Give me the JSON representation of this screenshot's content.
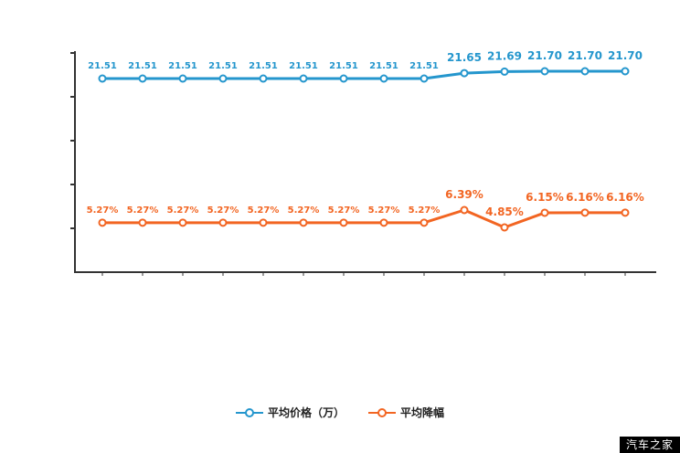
{
  "chart_data": {
    "type": "line",
    "point_count": 14,
    "x_tick_labels_visible": false,
    "grid": false,
    "legend_position": "bottom",
    "axis_color": "#333333",
    "series": [
      {
        "name": "平均价格（万）",
        "color": "#2496cd",
        "values": [
          21.51,
          21.51,
          21.51,
          21.51,
          21.51,
          21.51,
          21.51,
          21.51,
          21.51,
          21.65,
          21.69,
          21.7,
          21.7,
          21.7
        ],
        "labels": [
          "21.51",
          "21.51",
          "21.51",
          "21.51",
          "21.51",
          "21.51",
          "21.51",
          "21.51",
          "21.51",
          "21.65",
          "21.69",
          "21.70",
          "21.70",
          "21.70"
        ]
      },
      {
        "name": "平均降幅",
        "color": "#f26522",
        "values": [
          5.27,
          5.27,
          5.27,
          5.27,
          5.27,
          5.27,
          5.27,
          5.27,
          5.27,
          6.39,
          4.85,
          6.15,
          6.16,
          6.16
        ],
        "labels": [
          "5.27%",
          "5.27%",
          "5.27%",
          "5.27%",
          "5.27%",
          "5.27%",
          "5.27%",
          "5.27%",
          "5.27%",
          "6.39%",
          "4.85%",
          "6.15%",
          "6.16%",
          "6.16%"
        ]
      }
    ]
  },
  "legend": {
    "items": [
      {
        "label": "平均价格（万）",
        "color": "#2496cd"
      },
      {
        "label": "平均降幅",
        "color": "#f26522"
      }
    ]
  },
  "watermark": {
    "text": "汽车之家",
    "bg": "#000000",
    "fg": "#ffffff"
  }
}
